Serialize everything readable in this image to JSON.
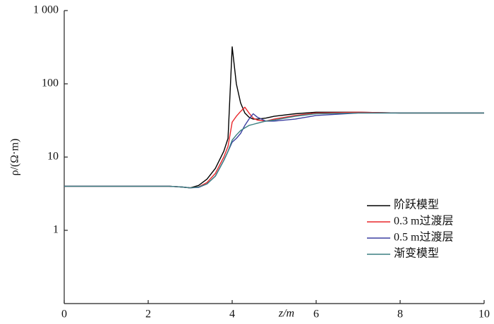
{
  "chart_data": {
    "type": "line",
    "log_y": true,
    "x_label": "z/m",
    "y_label": "ρ/(Ω·m)",
    "x": [
      0,
      0.5,
      1,
      1.5,
      2,
      2.5,
      2.8,
      3,
      3.2,
      3.4,
      3.6,
      3.8,
      3.9,
      4,
      4.1,
      4.2,
      4.3,
      4.4,
      4.5,
      4.6,
      4.8,
      5,
      5.5,
      6,
      7,
      8,
      9,
      10
    ],
    "series": [
      {
        "name": "阶跃模型",
        "color": "#000000",
        "values": [
          4,
          4,
          4,
          4,
          4,
          4,
          3.9,
          3.8,
          4.1,
          5,
          7,
          12,
          18,
          320,
          100,
          55,
          40,
          35,
          33,
          33,
          34,
          36,
          39,
          41,
          41,
          40,
          40,
          40
        ]
      },
      {
        "name": "0.3 m过渡层",
        "color": "#e8262a",
        "values": [
          4,
          4,
          4,
          4,
          4,
          4,
          3.9,
          3.8,
          3.9,
          4.5,
          6,
          10,
          14,
          30,
          36,
          42,
          48,
          40,
          34,
          32,
          31,
          33,
          37,
          40,
          41,
          40,
          40,
          40
        ]
      },
      {
        "name": "0.5 m过渡层",
        "color": "#3a3ea0",
        "values": [
          4,
          4,
          4,
          4,
          4,
          4,
          3.9,
          3.8,
          3.85,
          4.3,
          5.5,
          9,
          12,
          16,
          18,
          21,
          27,
          33,
          39,
          35,
          31,
          31,
          33,
          37,
          40,
          40,
          40,
          40
        ]
      },
      {
        "name": "渐变模型",
        "color": "#3a7f80",
        "values": [
          4,
          4,
          4,
          4,
          4,
          4,
          3.9,
          3.8,
          3.9,
          4.3,
          5.5,
          9,
          12,
          17,
          20,
          23,
          25,
          27,
          28,
          29,
          31,
          32,
          36,
          39,
          40,
          40,
          40,
          40
        ]
      }
    ],
    "xlim": [
      0,
      10
    ],
    "xticks": [
      0,
      2,
      4,
      6,
      8,
      10
    ],
    "ylim": [
      0.1,
      1000
    ],
    "yticks": [
      1,
      10,
      100,
      {
        "value": 1000,
        "label": "1 000"
      }
    ],
    "legend": "lower-right"
  }
}
